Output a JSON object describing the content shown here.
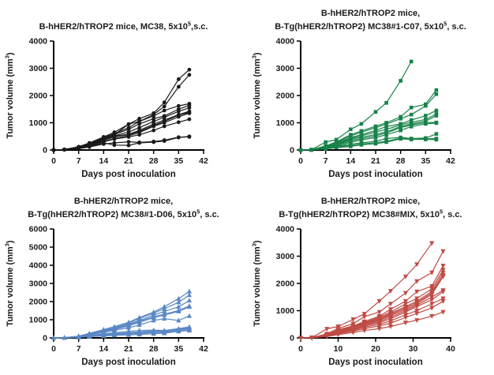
{
  "figure": {
    "background": "#ffffff",
    "xlabel": "Days post inoculation",
    "ylabel": "Tumor volume (mm^3)"
  },
  "chart_data": [
    {
      "type": "line",
      "title_lines": [
        "B-hHER2/hTROP2 mice, MC38, 5x10^5,s.c."
      ],
      "xlabel": "Days post inoculation",
      "ylabel": "Tumor volume (mm^3)",
      "color": "#1a1a1a",
      "marker": "circle",
      "xlim": [
        0,
        42
      ],
      "xticks": [
        0,
        7,
        14,
        21,
        28,
        35,
        42
      ],
      "ylim": [
        0,
        4000
      ],
      "yticks": [
        0,
        1000,
        2000,
        3000,
        4000
      ],
      "grid": false,
      "legend": "none",
      "days": [
        0,
        3,
        7,
        10,
        14,
        17,
        21,
        24,
        28,
        31,
        35,
        38
      ],
      "series": [
        {
          "y": [
            0,
            20,
            120,
            260,
            480,
            650,
            950,
            1150,
            1350,
            1750,
            2600,
            2950
          ]
        },
        {
          "y": [
            0,
            20,
            110,
            240,
            450,
            600,
            820,
            1050,
            1300,
            1600,
            2320,
            2760
          ]
        },
        {
          "y": [
            0,
            20,
            100,
            220,
            420,
            560,
            950,
            1050,
            1250,
            1450,
            1620,
            1700
          ]
        },
        {
          "y": [
            0,
            15,
            110,
            230,
            430,
            570,
            760,
            960,
            1150,
            1250,
            1500,
            1640
          ]
        },
        {
          "y": [
            0,
            15,
            100,
            210,
            400,
            520,
            660,
            820,
            1050,
            1200,
            1420,
            1550
          ]
        },
        {
          "y": [
            0,
            15,
            90,
            190,
            380,
            500,
            580,
            720,
            950,
            1100,
            1300,
            1420
          ]
        },
        {
          "y": [
            0,
            15,
            90,
            180,
            360,
            480,
            560,
            680,
            900,
            1050,
            1280,
            1380
          ]
        },
        {
          "y": [
            0,
            10,
            80,
            170,
            320,
            420,
            520,
            640,
            870,
            1000,
            1220,
            1350
          ]
        },
        {
          "y": [
            0,
            10,
            70,
            150,
            300,
            400,
            480,
            560,
            720,
            870,
            1020,
            1130
          ]
        },
        {
          "y": [
            0,
            10,
            60,
            130,
            260,
            180,
            170,
            260,
            290,
            330,
            460,
            500
          ]
        },
        {
          "y": [
            0,
            10,
            50,
            110,
            220,
            260,
            300,
            280,
            310,
            360,
            470,
            480
          ]
        }
      ]
    },
    {
      "type": "line",
      "title_lines": [
        "B-hHER2/hTROP2 mice,",
        "B-Tg(hHER2/hTROP2) MC38#1-C07, 5x10^5, s.c."
      ],
      "xlabel": "Days post inoculation",
      "ylabel": "Tumor volume (mm^3)",
      "color": "#18824a",
      "marker": "square",
      "xlim": [
        0,
        42
      ],
      "xticks": [
        0,
        7,
        14,
        21,
        28,
        35,
        42
      ],
      "ylim": [
        0,
        4000
      ],
      "yticks": [
        0,
        1000,
        2000,
        3000,
        4000
      ],
      "grid": false,
      "legend": "none",
      "days": [
        0,
        3,
        7,
        10,
        14,
        17,
        21,
        24,
        28,
        31,
        35,
        38
      ],
      "series": [
        {
          "x": [
            0,
            3,
            7,
            10,
            14,
            17,
            21,
            24,
            28,
            31
          ],
          "y": [
            0,
            10,
            290,
            380,
            760,
            960,
            1400,
            1730,
            2540,
            3250
          ]
        },
        {
          "y": [
            0,
            10,
            150,
            300,
            560,
            700,
            870,
            1000,
            1220,
            1560,
            1680,
            2200
          ]
        },
        {
          "y": [
            0,
            10,
            130,
            280,
            520,
            650,
            820,
            950,
            1150,
            1300,
            1620,
            2050
          ]
        },
        {
          "y": [
            0,
            10,
            110,
            250,
            460,
            560,
            720,
            860,
            960,
            1100,
            1260,
            1450
          ]
        },
        {
          "y": [
            0,
            5,
            100,
            230,
            420,
            520,
            660,
            760,
            920,
            1020,
            1120,
            1320
          ]
        },
        {
          "y": [
            0,
            5,
            90,
            210,
            380,
            470,
            570,
            670,
            860,
            960,
            1060,
            1260
          ]
        },
        {
          "y": [
            0,
            5,
            80,
            190,
            330,
            420,
            520,
            620,
            820,
            920,
            1010,
            1010
          ]
        },
        {
          "y": [
            0,
            5,
            70,
            160,
            280,
            370,
            460,
            560,
            720,
            860,
            960,
            990
          ]
        },
        {
          "y": [
            0,
            5,
            60,
            130,
            220,
            260,
            320,
            420,
            460,
            420,
            440,
            590
          ]
        },
        {
          "y": [
            0,
            5,
            50,
            110,
            170,
            220,
            270,
            320,
            430,
            390,
            410,
            420
          ]
        },
        {
          "y": [
            0,
            5,
            40,
            90,
            130,
            190,
            230,
            290,
            410,
            390,
            390,
            380
          ]
        }
      ]
    },
    {
      "type": "line",
      "title_lines": [
        "B-hHER2/hTROP2 mice,",
        "B-Tg(hHER2/hTROP2) MC38#1-D06, 5x10^5, s.c."
      ],
      "xlabel": "Days post inoculation",
      "ylabel": "Tumor volume (mm^3)",
      "color": "#5b87c5",
      "marker": "triangle-up",
      "xlim": [
        0,
        42
      ],
      "xticks": [
        0,
        7,
        14,
        21,
        28,
        35,
        42
      ],
      "ylim": [
        0,
        6000
      ],
      "yticks": [
        0,
        1000,
        2000,
        3000,
        4000,
        5000,
        6000
      ],
      "grid": false,
      "legend": "none",
      "days": [
        0,
        3,
        7,
        10,
        14,
        17,
        21,
        24,
        28,
        31,
        35,
        38
      ],
      "series": [
        {
          "y": [
            0,
            10,
            100,
            250,
            460,
            620,
            860,
            1120,
            1420,
            1720,
            2160,
            2560
          ]
        },
        {
          "y": [
            0,
            10,
            90,
            230,
            430,
            560,
            810,
            1060,
            1360,
            1610,
            1960,
            2360
          ]
        },
        {
          "y": [
            0,
            10,
            90,
            210,
            390,
            510,
            760,
            960,
            1260,
            1460,
            1710,
            2060
          ]
        },
        {
          "y": [
            0,
            10,
            80,
            190,
            360,
            490,
            710,
            910,
            1160,
            1310,
            1510,
            1760
          ]
        },
        {
          "y": [
            0,
            10,
            80,
            180,
            340,
            460,
            660,
            860,
            1110,
            1260,
            1460,
            1710
          ]
        },
        {
          "y": [
            0,
            5,
            70,
            160,
            310,
            410,
            560,
            710,
            960,
            1060,
            960,
            1210
          ]
        },
        {
          "y": [
            0,
            5,
            60,
            130,
            230,
            290,
            360,
            410,
            430,
            410,
            510,
            610
          ]
        },
        {
          "y": [
            0,
            5,
            50,
            110,
            190,
            240,
            290,
            330,
            390,
            390,
            490,
            560
          ]
        },
        {
          "y": [
            0,
            5,
            40,
            100,
            160,
            210,
            260,
            290,
            330,
            360,
            460,
            510
          ]
        },
        {
          "y": [
            0,
            5,
            40,
            90,
            130,
            170,
            210,
            240,
            290,
            310,
            410,
            460
          ]
        },
        {
          "y": [
            0,
            5,
            30,
            70,
            110,
            140,
            170,
            190,
            230,
            260,
            360,
            410
          ]
        }
      ]
    },
    {
      "type": "line",
      "title_lines": [
        "B-hHER2/hTROP2 mice,",
        "B-Tg(hHER2/hTROP2) MC38#MIX, 5x10^5, s.c."
      ],
      "xlabel": "Days post inoculation",
      "ylabel": "Tumor volume (mm^3)",
      "color": "#bf4b45",
      "marker": "triangle-down",
      "xlim": [
        0,
        40
      ],
      "xticks": [
        0,
        10,
        20,
        30,
        40
      ],
      "ylim": [
        0,
        4000
      ],
      "yticks": [
        0,
        1000,
        2000,
        3000,
        4000
      ],
      "grid": false,
      "legend": "none",
      "days": [
        0,
        3,
        7,
        10,
        14,
        17,
        21,
        24,
        28,
        31,
        35,
        38
      ],
      "series": [
        {
          "x": [
            0,
            3,
            7,
            10,
            14,
            17,
            21,
            24,
            28,
            31,
            35
          ],
          "y": [
            0,
            10,
            330,
            420,
            680,
            880,
            1350,
            1720,
            2250,
            2700,
            3480
          ]
        },
        {
          "y": [
            0,
            10,
            150,
            350,
            520,
            780,
            950,
            1250,
            1650,
            2080,
            2400,
            3180
          ]
        },
        {
          "y": [
            0,
            5,
            120,
            300,
            440,
            600,
            800,
            1050,
            1350,
            1700,
            1900,
            2650
          ]
        },
        {
          "y": [
            0,
            5,
            110,
            280,
            420,
            560,
            760,
            950,
            1250,
            1450,
            1800,
            2500
          ]
        },
        {
          "y": [
            0,
            5,
            100,
            260,
            400,
            540,
            720,
            900,
            1150,
            1350,
            1700,
            2400
          ]
        },
        {
          "y": [
            0,
            5,
            100,
            240,
            380,
            520,
            680,
            860,
            1100,
            1300,
            1650,
            2300
          ]
        },
        {
          "y": [
            0,
            5,
            90,
            220,
            360,
            500,
            640,
            820,
            1050,
            1250,
            1600,
            2250
          ]
        },
        {
          "y": [
            0,
            5,
            80,
            200,
            330,
            460,
            600,
            760,
            1000,
            1200,
            1500,
            1750
          ]
        },
        {
          "y": [
            0,
            5,
            80,
            190,
            310,
            430,
            560,
            700,
            950,
            1150,
            1400,
            1700
          ]
        },
        {
          "y": [
            0,
            5,
            70,
            170,
            280,
            390,
            500,
            620,
            850,
            1000,
            1250,
            1450
          ]
        },
        {
          "y": [
            0,
            5,
            60,
            150,
            250,
            340,
            440,
            540,
            750,
            900,
            1100,
            1350
          ]
        },
        {
          "y": [
            0,
            5,
            50,
            120,
            200,
            270,
            340,
            420,
            560,
            650,
            800,
            950
          ]
        }
      ]
    }
  ]
}
